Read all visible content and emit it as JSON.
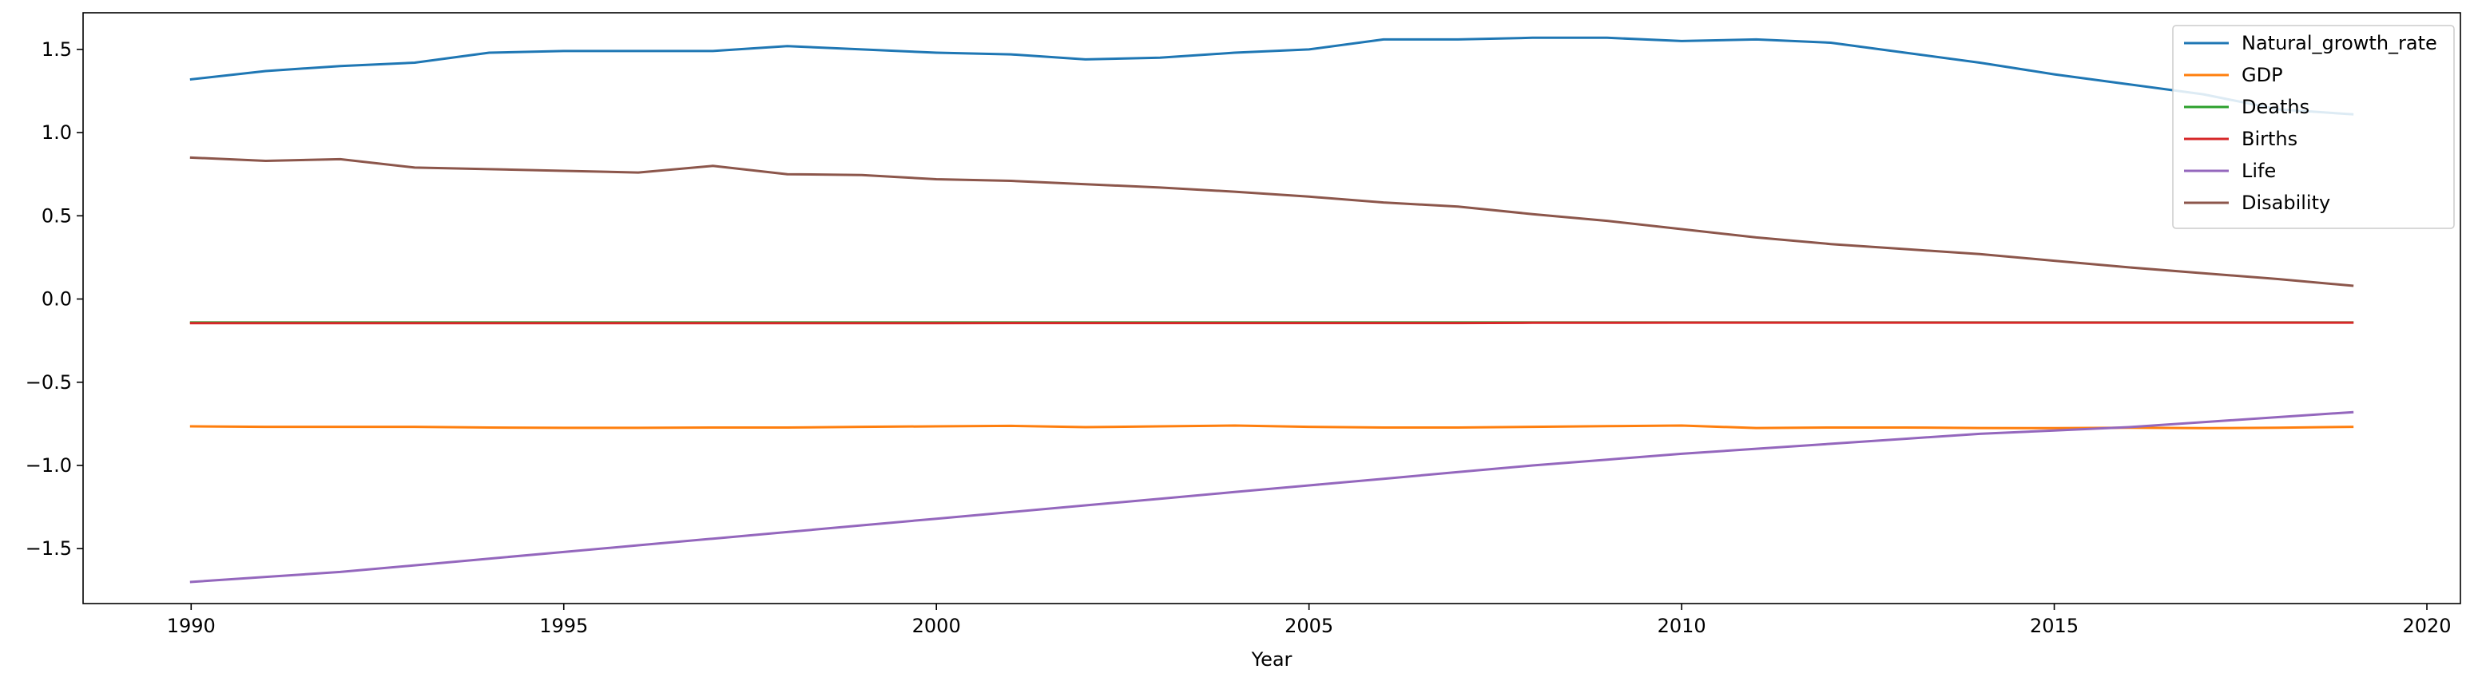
{
  "chart_data": {
    "type": "line",
    "title": "",
    "xlabel": "Year",
    "ylabel": "",
    "xlim": [
      1988.55,
      2020.45
    ],
    "ylim": [
      -1.83,
      1.72
    ],
    "xticks": [
      1990,
      1995,
      2000,
      2005,
      2010,
      2015,
      2020
    ],
    "xtick_labels": [
      "1990",
      "1995",
      "2000",
      "2005",
      "2010",
      "2015",
      "2020"
    ],
    "yticks": [
      1.5,
      1.0,
      0.5,
      0.0,
      -0.5,
      -1.0,
      -1.5
    ],
    "ytick_labels": [
      "1.5",
      "1.0",
      "0.5",
      "0.0",
      "−0.5",
      "−1.0",
      "−1.5"
    ],
    "grid": false,
    "legend_position": "top-right",
    "x": [
      1990,
      1991,
      1992,
      1993,
      1994,
      1995,
      1996,
      1997,
      1998,
      1999,
      2000,
      2001,
      2002,
      2003,
      2004,
      2005,
      2006,
      2007,
      2008,
      2009,
      2010,
      2011,
      2012,
      2013,
      2014,
      2015,
      2016,
      2017,
      2018,
      2019
    ],
    "series": [
      {
        "name": "Natural_growth_rate",
        "color": "#1f77b4",
        "values": [
          1.32,
          1.37,
          1.4,
          1.42,
          1.48,
          1.49,
          1.49,
          1.49,
          1.52,
          1.5,
          1.48,
          1.47,
          1.44,
          1.45,
          1.48,
          1.5,
          1.56,
          1.56,
          1.57,
          1.57,
          1.55,
          1.56,
          1.54,
          1.48,
          1.42,
          1.35,
          1.29,
          1.23,
          1.14,
          1.11
        ]
      },
      {
        "name": "GDP",
        "color": "#ff7f0e",
        "values": [
          -0.765,
          -0.768,
          -0.768,
          -0.768,
          -0.772,
          -0.774,
          -0.774,
          -0.772,
          -0.772,
          -0.768,
          -0.765,
          -0.762,
          -0.77,
          -0.765,
          -0.76,
          -0.768,
          -0.772,
          -0.772,
          -0.768,
          -0.764,
          -0.76,
          -0.775,
          -0.772,
          -0.772,
          -0.775,
          -0.776,
          -0.773,
          -0.776,
          -0.773,
          -0.768
        ]
      },
      {
        "name": "Deaths",
        "color": "#2ca02c",
        "values": [
          -0.141,
          -0.141,
          -0.141,
          -0.141,
          -0.141,
          -0.141,
          -0.141,
          -0.141,
          -0.141,
          -0.141,
          -0.141,
          -0.141,
          -0.141,
          -0.141,
          -0.141,
          -0.141,
          -0.141,
          -0.141,
          -0.141,
          -0.141,
          -0.141,
          -0.141,
          -0.141,
          -0.141,
          -0.141,
          -0.141,
          -0.141,
          -0.141,
          -0.141,
          -0.141
        ]
      },
      {
        "name": "Births",
        "color": "#d62728",
        "values": [
          -0.145,
          -0.145,
          -0.145,
          -0.145,
          -0.145,
          -0.145,
          -0.145,
          -0.145,
          -0.145,
          -0.145,
          -0.145,
          -0.144,
          -0.144,
          -0.144,
          -0.144,
          -0.144,
          -0.144,
          -0.144,
          -0.143,
          -0.143,
          -0.142,
          -0.142,
          -0.142,
          -0.142,
          -0.142,
          -0.142,
          -0.142,
          -0.142,
          -0.142,
          -0.142
        ]
      },
      {
        "name": "Life",
        "color": "#9467bd",
        "values": [
          -1.7,
          -1.67,
          -1.64,
          -1.6,
          -1.56,
          -1.52,
          -1.48,
          -1.44,
          -1.4,
          -1.36,
          -1.32,
          -1.28,
          -1.24,
          -1.2,
          -1.16,
          -1.12,
          -1.08,
          -1.04,
          -1.0,
          -0.965,
          -0.93,
          -0.9,
          -0.87,
          -0.84,
          -0.81,
          -0.79,
          -0.77,
          -0.74,
          -0.71,
          -0.68
        ]
      },
      {
        "name": "Disability",
        "color": "#8c564b",
        "values": [
          0.85,
          0.83,
          0.84,
          0.79,
          0.78,
          0.77,
          0.76,
          0.8,
          0.75,
          0.745,
          0.72,
          0.71,
          0.69,
          0.67,
          0.645,
          0.615,
          0.58,
          0.555,
          0.51,
          0.47,
          0.42,
          0.37,
          0.33,
          0.3,
          0.27,
          0.23,
          0.19,
          0.155,
          0.12,
          0.08
        ]
      }
    ]
  }
}
